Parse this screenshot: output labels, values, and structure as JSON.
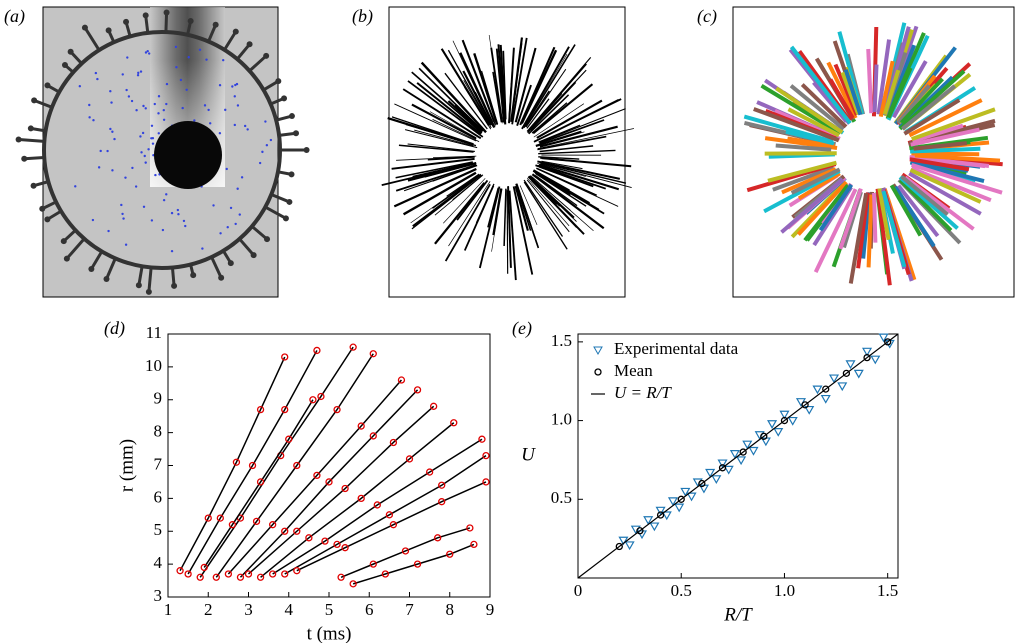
{
  "panel_labels": [
    "(a)",
    "(b)",
    "(c)",
    "(d)",
    "(e)"
  ],
  "chart_data": [
    {
      "type": "line",
      "xlabel": "t (ms)",
      "ylabel": "r (mm)",
      "xlim": [
        1,
        9
      ],
      "xticks": [
        1,
        2,
        3,
        4,
        5,
        6,
        7,
        8,
        9
      ],
      "ylim": [
        3,
        11
      ],
      "yticks": [
        3,
        4,
        5,
        6,
        7,
        8,
        9,
        10,
        11
      ],
      "color": "#e00000",
      "line_color": "#000000",
      "series": [
        {
          "x": [
            1.3,
            2.0,
            2.7,
            3.3,
            3.9
          ],
          "values": [
            3.8,
            5.4,
            7.1,
            8.7,
            10.3
          ]
        },
        {
          "x": [
            1.5,
            2.3,
            3.1,
            3.9,
            4.7
          ],
          "values": [
            3.7,
            5.4,
            7.0,
            8.7,
            10.5
          ]
        },
        {
          "x": [
            1.8,
            2.8,
            3.8,
            4.8,
            5.6
          ],
          "values": [
            3.6,
            5.4,
            7.3,
            9.1,
            10.6
          ]
        },
        {
          "x": [
            2.2,
            3.2,
            4.2,
            5.2,
            6.1
          ],
          "values": [
            3.6,
            5.3,
            7.0,
            8.7,
            10.4
          ]
        },
        {
          "x": [
            2.5,
            3.6,
            4.7,
            5.8,
            6.8
          ],
          "values": [
            3.7,
            5.2,
            6.7,
            8.2,
            9.6
          ]
        },
        {
          "x": [
            2.8,
            3.9,
            5.0,
            6.1,
            7.2
          ],
          "values": [
            3.6,
            5.0,
            6.5,
            7.9,
            9.3
          ]
        },
        {
          "x": [
            3.0,
            4.2,
            5.4,
            6.6,
            7.6
          ],
          "values": [
            3.7,
            5.0,
            6.3,
            7.7,
            8.8
          ]
        },
        {
          "x": [
            3.3,
            4.5,
            5.8,
            7.0,
            8.1
          ],
          "values": [
            3.6,
            4.8,
            6.0,
            7.2,
            8.3
          ]
        },
        {
          "x": [
            3.6,
            4.9,
            6.2,
            7.5,
            8.8
          ],
          "values": [
            3.7,
            4.7,
            5.8,
            6.8,
            7.8
          ]
        },
        {
          "x": [
            3.9,
            5.2,
            6.5,
            7.8,
            8.9
          ],
          "values": [
            3.7,
            4.6,
            5.5,
            6.4,
            7.3
          ]
        },
        {
          "x": [
            4.2,
            5.4,
            6.6,
            7.8,
            8.9
          ],
          "values": [
            3.8,
            4.5,
            5.2,
            5.9,
            6.5
          ]
        },
        {
          "x": [
            5.3,
            6.1,
            6.9,
            7.7,
            8.5
          ],
          "values": [
            3.6,
            4.0,
            4.4,
            4.8,
            5.1
          ]
        },
        {
          "x": [
            5.6,
            6.4,
            7.2,
            8.0,
            8.6
          ],
          "values": [
            3.4,
            3.7,
            4.0,
            4.3,
            4.6
          ]
        },
        {
          "x": [
            1.9,
            2.6,
            3.3,
            4.0,
            4.6
          ],
          "values": [
            3.9,
            5.2,
            6.5,
            7.8,
            9.0
          ]
        }
      ]
    },
    {
      "type": "scatter",
      "xlabel": "R/T",
      "ylabel": "U",
      "xlim": [
        0,
        1.55
      ],
      "xticks": [
        0,
        0.5,
        {
          "value": 1,
          "label": "1.0"
        },
        1.5
      ],
      "ylim": [
        0,
        1.55
      ],
      "yticks": [
        0.5,
        {
          "value": 1,
          "label": "1.0"
        },
        1.5
      ],
      "legend": "upper left",
      "series": [
        {
          "name": "Experimental data",
          "color": "#1f77b4",
          "marker": "triangle",
          "x": [
            0.22,
            0.25,
            0.28,
            0.31,
            0.34,
            0.37,
            0.4,
            0.43,
            0.46,
            0.49,
            0.52,
            0.55,
            0.58,
            0.61,
            0.64,
            0.67,
            0.7,
            0.73,
            0.76,
            0.79,
            0.82,
            0.85,
            0.88,
            0.91,
            0.94,
            0.97,
            1.0,
            1.04,
            1.08,
            1.12,
            1.16,
            1.2,
            1.24,
            1.28,
            1.32,
            1.36,
            1.4,
            1.44,
            1.48,
            1.51
          ],
          "values": [
            0.24,
            0.21,
            0.31,
            0.28,
            0.37,
            0.33,
            0.43,
            0.4,
            0.49,
            0.45,
            0.55,
            0.52,
            0.61,
            0.57,
            0.67,
            0.63,
            0.73,
            0.69,
            0.79,
            0.75,
            0.85,
            0.81,
            0.91,
            0.87,
            0.98,
            0.93,
            1.04,
            1.0,
            1.12,
            1.07,
            1.2,
            1.14,
            1.27,
            1.22,
            1.36,
            1.3,
            1.44,
            1.39,
            1.53,
            1.49
          ]
        },
        {
          "name": "Mean",
          "color": "#000000",
          "marker": "circle",
          "x": [
            0.2,
            0.3,
            0.4,
            0.5,
            0.6,
            0.7,
            0.8,
            0.9,
            1.0,
            1.1,
            1.2,
            1.3,
            1.4,
            1.5
          ],
          "values": [
            0.2,
            0.3,
            0.4,
            0.5,
            0.6,
            0.7,
            0.8,
            0.9,
            1.0,
            1.1,
            1.2,
            1.3,
            1.4,
            1.5
          ]
        },
        {
          "name": "U = R/T",
          "color": "#000000",
          "marker": "line",
          "x": [
            0,
            1.55
          ],
          "values": [
            0,
            1.55
          ]
        }
      ]
    }
  ]
}
